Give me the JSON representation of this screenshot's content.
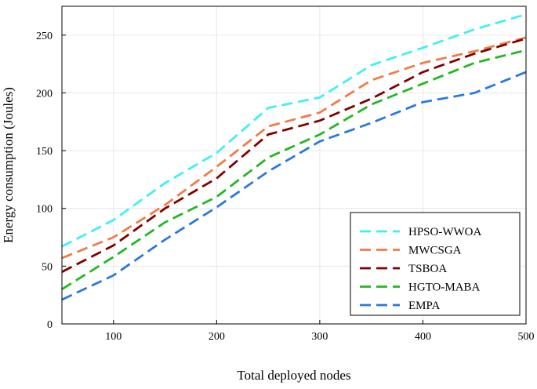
{
  "chart_data": {
    "type": "line",
    "title": "",
    "xlabel": "Total deployed nodes",
    "ylabel": "Energy consumption (Joules)",
    "xlim": [
      50,
      500
    ],
    "ylim": [
      0,
      275
    ],
    "xticks": [
      100,
      200,
      300,
      400,
      500
    ],
    "yticks": [
      0,
      50,
      100,
      150,
      200,
      250
    ],
    "grid": true,
    "legend_position": "bottom-right",
    "x": [
      50,
      100,
      150,
      200,
      250,
      300,
      350,
      400,
      450,
      500
    ],
    "series": [
      {
        "name": "HPSO-WWOA",
        "color": "#40f0f0",
        "values": [
          67,
          90,
          122,
          148,
          187,
          196,
          224,
          239,
          255,
          268
        ]
      },
      {
        "name": "MWCSGA",
        "color": "#f07c48",
        "values": [
          57,
          75,
          103,
          136,
          171,
          183,
          211,
          226,
          236,
          248
        ]
      },
      {
        "name": "TSBOA",
        "color": "#800000",
        "values": [
          45,
          68,
          100,
          126,
          164,
          176,
          195,
          218,
          234,
          247
        ]
      },
      {
        "name": "HGTO-MABA",
        "color": "#22b822",
        "values": [
          30,
          58,
          88,
          110,
          144,
          164,
          190,
          208,
          226,
          237
        ]
      },
      {
        "name": "EMPA",
        "color": "#2a78e0",
        "values": [
          21,
          42,
          73,
          101,
          132,
          158,
          174,
          192,
          200,
          218
        ]
      }
    ]
  }
}
